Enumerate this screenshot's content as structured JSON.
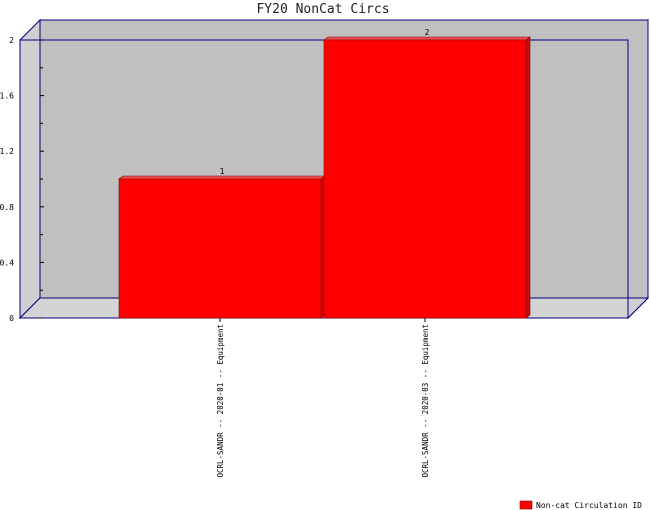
{
  "chart_data": {
    "type": "bar",
    "title": "FY20 NonCat Circs",
    "categories": [
      "OCRL-SANDR -- 2020-01 -- Equipment",
      "OCRL-SANDR -- 2020-03 -- Equipment"
    ],
    "series": [
      {
        "name": "Non-cat Circulation ID",
        "values": [
          1,
          2
        ]
      }
    ],
    "data_labels": [
      "1",
      "2"
    ],
    "ylim": [
      0,
      2
    ],
    "yticks": [
      "0",
      "0.4",
      "0.8",
      "1.2",
      "1.6",
      "2"
    ],
    "legend_position": "bottom-right",
    "colors": {
      "bar": "#ff0000",
      "bar_top": "#e85050",
      "bar_side": "#c01010",
      "plot_bg": "#c0c0c0",
      "floor": "#d4d4d4",
      "axis": "#000080"
    }
  }
}
